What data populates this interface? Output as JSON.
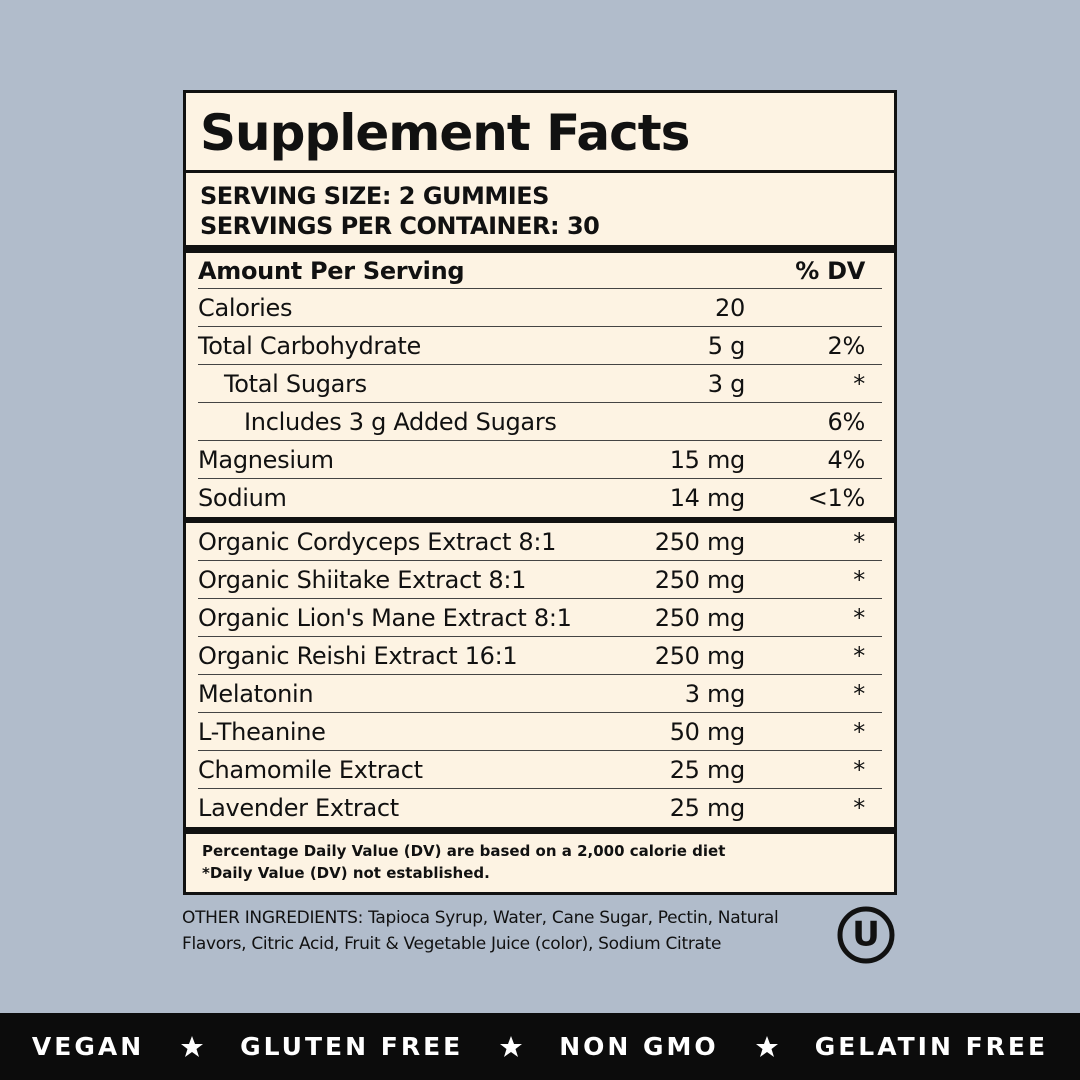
{
  "title": "Supplement Facts",
  "serving": [
    "SERVING SIZE: 2 GUMMIES",
    "SERVINGS PER CONTAINER: 30"
  ],
  "header": {
    "amount": "Amount Per Serving",
    "dv": "% DV"
  },
  "nutrients": [
    {
      "name": "Calories",
      "amount": "20"
    },
    {
      "name": "Total Carbohydrate",
      "amount": "5 g",
      "dv": "2%"
    },
    {
      "name": "Total Sugars",
      "amount": "3 g",
      "dv": "*"
    },
    {
      "name": "Includes 3 g Added Sugars",
      "dv": "6%"
    },
    {
      "name": "Magnesium",
      "amount": "15 mg",
      "dv": "4%"
    },
    {
      "name": "Sodium",
      "amount": "14 mg",
      "dv": "<1%"
    }
  ],
  "ingredients": [
    {
      "name": "Organic Cordyceps Extract 8:1",
      "amount": "250 mg",
      "dv": "*"
    },
    {
      "name": "Organic Shiitake Extract 8:1",
      "amount": "250 mg",
      "dv": "*"
    },
    {
      "name": "Organic Lion's Mane Extract 8:1",
      "amount": "250 mg",
      "dv": "*"
    },
    {
      "name": "Organic Reishi Extract 16:1",
      "amount": "250 mg",
      "dv": "*"
    },
    {
      "name": "Melatonin",
      "amount": "3 mg",
      "dv": "*"
    },
    {
      "name": "L-Theanine",
      "amount": "50 mg",
      "dv": "*"
    },
    {
      "name": "Chamomile Extract",
      "amount": "25 mg",
      "dv": "*"
    },
    {
      "name": "Lavender Extract",
      "amount": "25 mg",
      "dv": "*"
    }
  ],
  "footnotes": [
    "Percentage Daily Value (DV) are based on a 2,000 calorie diet",
    "*Daily Value (DV) not established."
  ],
  "other_ingredients": "OTHER INGREDIENTS: Tapioca Syrup, Water, Cane Sugar, Pectin, Natural Flavors, Citric Acid, Fruit & Vegetable Juice (color), Sodium Citrate",
  "certification": "U",
  "badges": [
    "VEGAN",
    "GLUTEN FREE",
    "NON GMO",
    "GELATIN FREE"
  ]
}
